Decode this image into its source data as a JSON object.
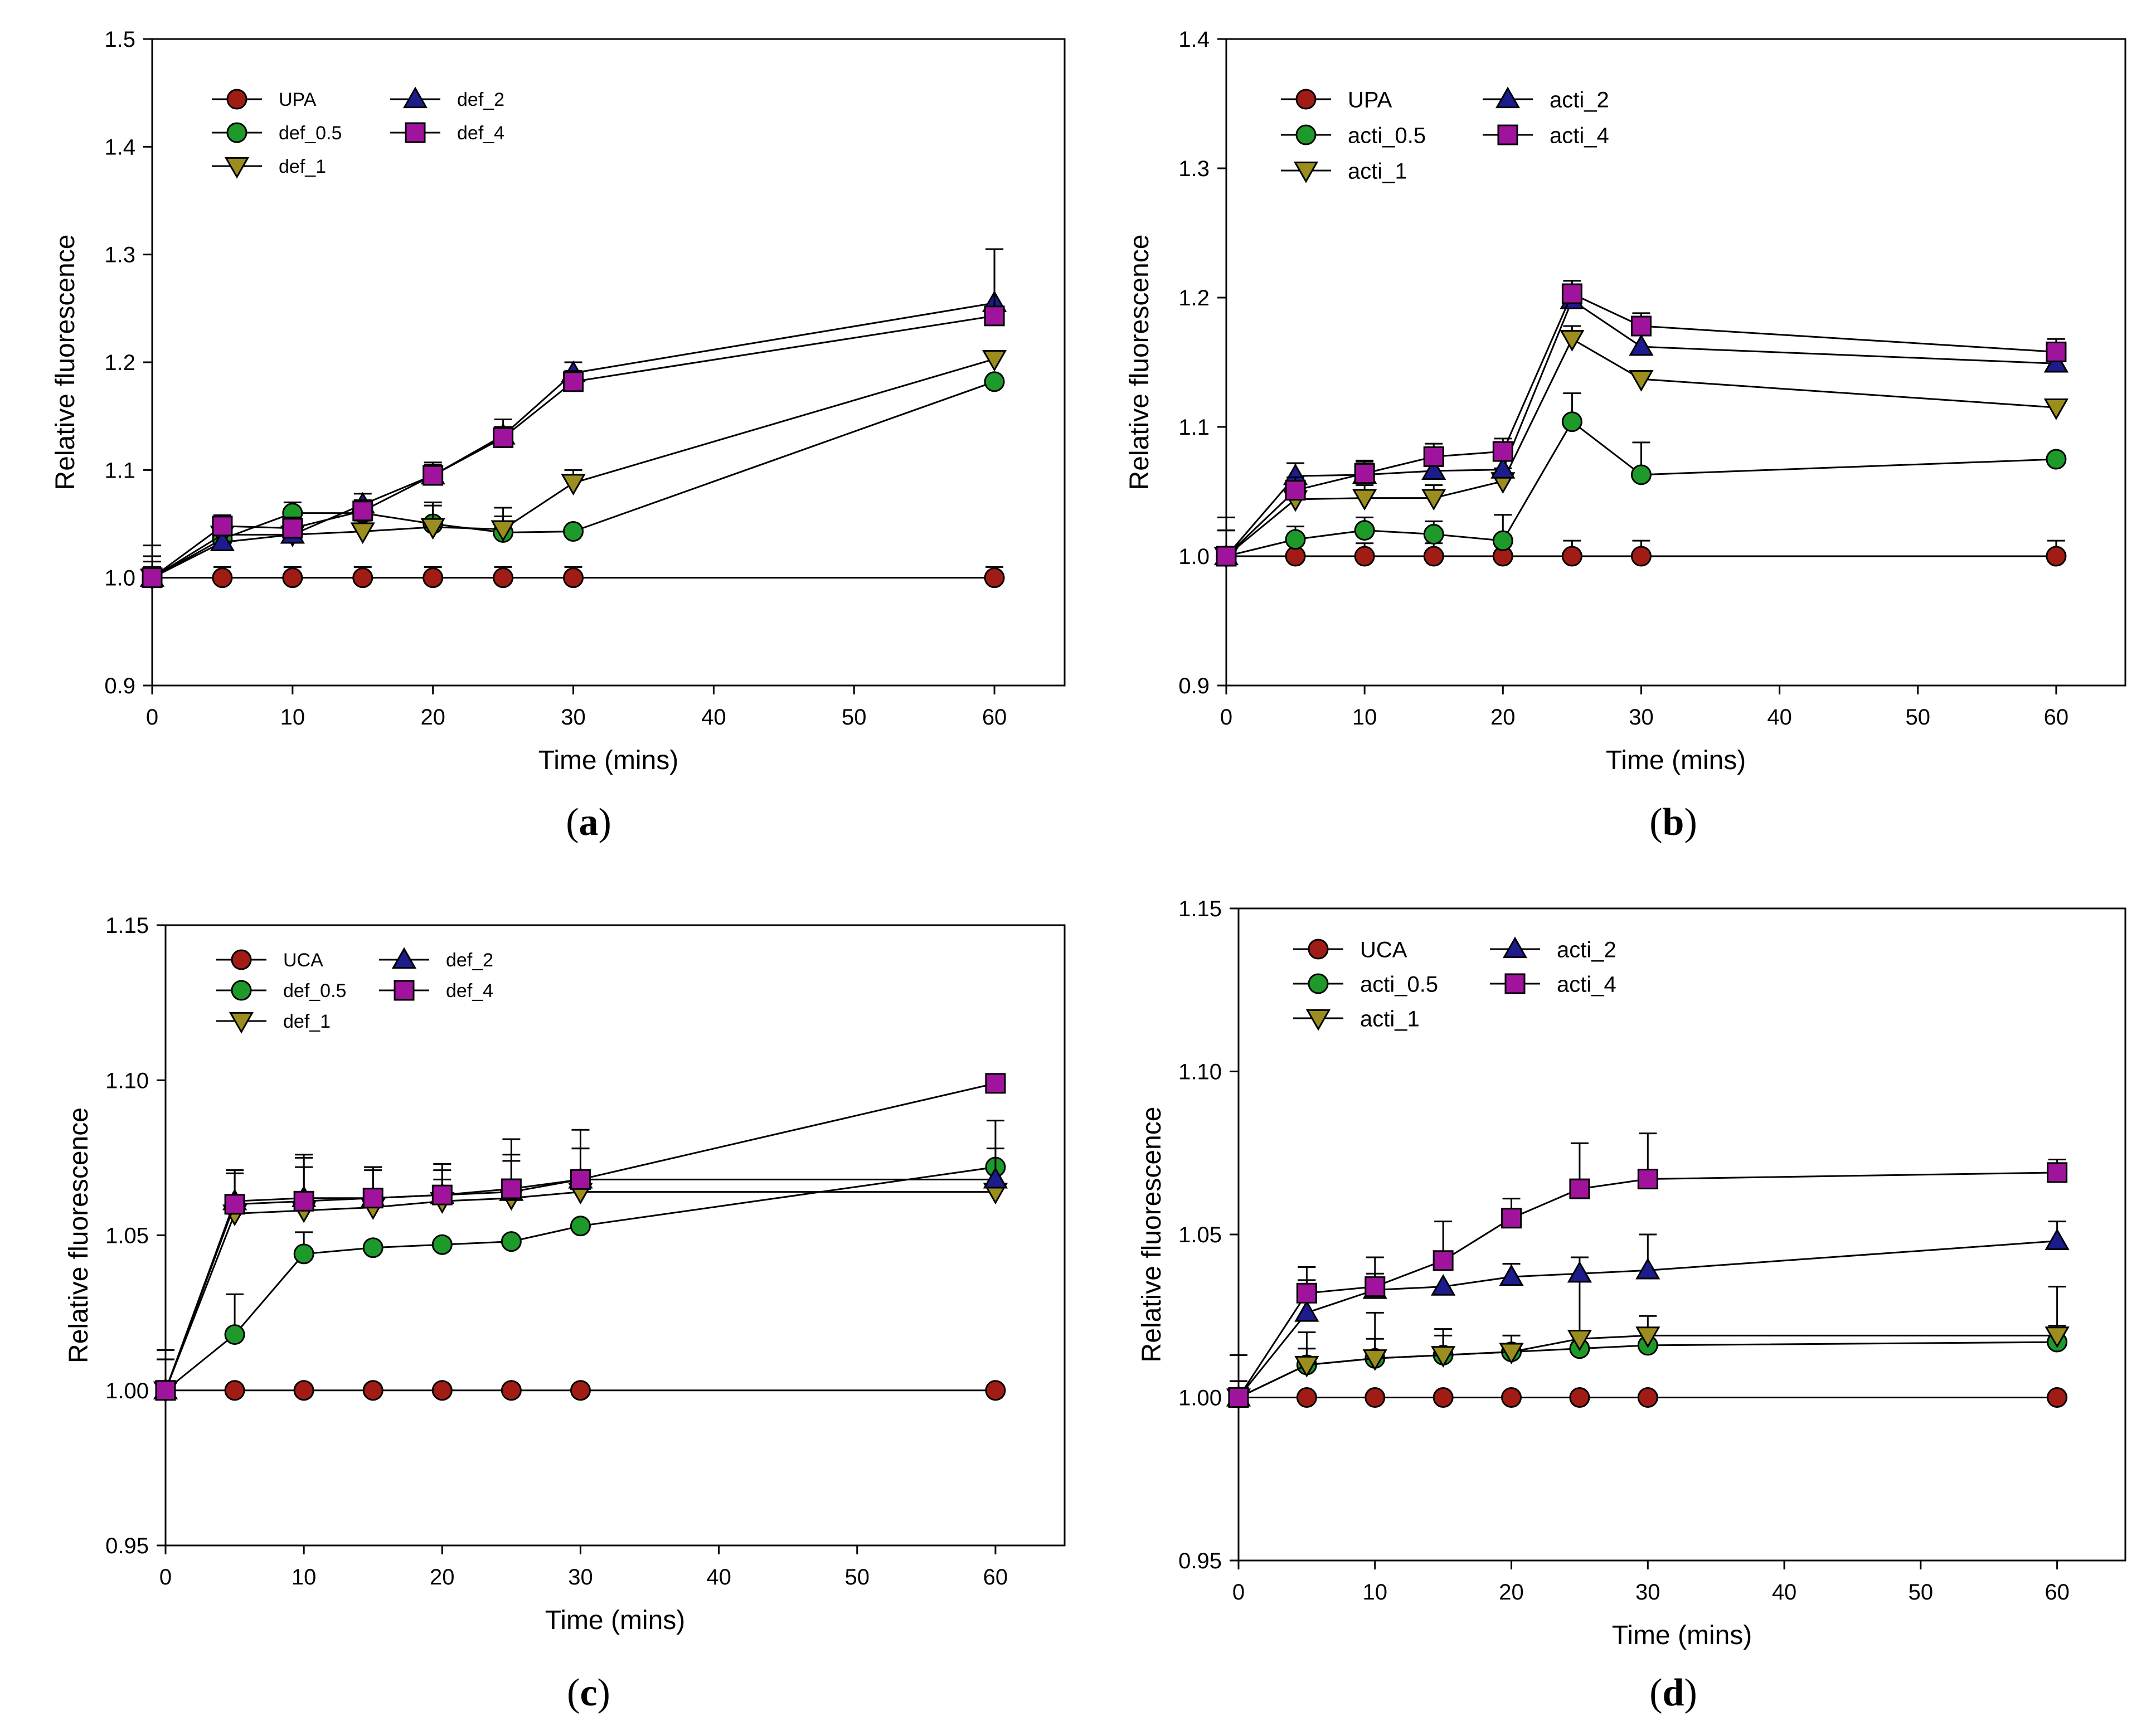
{
  "figure": {
    "colors": {
      "red": "#A01C14",
      "green": "#1E9A2B",
      "olive": "#9C8E1E",
      "blue": "#1C1C8C",
      "purple": "#A0139C",
      "line": "#000000"
    }
  },
  "chart_data": [
    {
      "panel": "a",
      "label_letter": "a",
      "type": "line",
      "xlabel": "Time (mins)",
      "ylabel": "Relative fluorescence",
      "xlim": [
        0,
        65
      ],
      "ylim": [
        0.9,
        1.5
      ],
      "xticks": [
        "0",
        "10",
        "20",
        "30",
        "40",
        "50",
        "60"
      ],
      "yticks": [
        "0.9",
        "1.0",
        "1.1",
        "1.2",
        "1.3",
        "1.4",
        "1.5"
      ],
      "legend_layout": "top-left",
      "x": [
        0,
        5,
        10,
        15,
        20,
        25,
        30,
        60
      ],
      "series": [
        {
          "name": "UPA",
          "marker": "circle",
          "color": "red",
          "values": [
            1.0,
            1.0,
            1.0,
            1.0,
            1.0,
            1.0,
            1.0,
            1.0
          ],
          "errors": [
            0.01,
            0.01,
            0.01,
            0.01,
            0.01,
            0.01,
            0.01,
            0.01
          ]
        },
        {
          "name": "def_0.5",
          "marker": "circle",
          "color": "green",
          "values": [
            1.0,
            1.036,
            1.06,
            1.06,
            1.05,
            1.042,
            1.043,
            1.182
          ],
          "errors": [
            0.02,
            0.01,
            0.01,
            0.01,
            0.02,
            0.015,
            0.0,
            0.0
          ]
        },
        {
          "name": "def_1",
          "marker": "triangle-down",
          "color": "olive",
          "values": [
            1.0,
            1.04,
            1.04,
            1.043,
            1.047,
            1.045,
            1.088,
            1.203
          ],
          "errors": [
            0.015,
            0.01,
            0.01,
            0.01,
            0.02,
            0.02,
            0.012,
            0.0
          ]
        },
        {
          "name": "def_2",
          "marker": "triangle-up",
          "color": "blue",
          "values": [
            1.0,
            1.033,
            1.04,
            1.068,
            1.095,
            1.132,
            1.19,
            1.255
          ],
          "errors": [
            0.03,
            0.01,
            0.01,
            0.01,
            0.012,
            0.015,
            0.01,
            0.05
          ]
        },
        {
          "name": "def_4",
          "marker": "square",
          "color": "purple",
          "values": [
            1.0,
            1.048,
            1.046,
            1.062,
            1.095,
            1.13,
            1.182,
            1.243
          ],
          "errors": [
            0.01,
            0.01,
            0.01,
            0.01,
            0.01,
            0.01,
            0.01,
            0.062
          ]
        }
      ]
    },
    {
      "panel": "b",
      "label_letter": "b",
      "type": "line",
      "xlabel": "Time (mins)",
      "ylabel": "Relative fluorescence",
      "xlim": [
        0,
        65
      ],
      "ylim": [
        0.9,
        1.4
      ],
      "xticks": [
        "0",
        "10",
        "20",
        "30",
        "40",
        "50",
        "60"
      ],
      "yticks": [
        "0.9",
        "1.0",
        "1.1",
        "1.2",
        "1.3",
        "1.4"
      ],
      "legend_layout": "top-left",
      "x": [
        0,
        5,
        10,
        15,
        20,
        25,
        30,
        60
      ],
      "series": [
        {
          "name": "UPA",
          "marker": "circle",
          "color": "red",
          "values": [
            1.0,
            1.0,
            1.0,
            1.0,
            1.0,
            1.0,
            1.0,
            1.0
          ],
          "errors": [
            0.03,
            0.01,
            0.01,
            0.01,
            0.01,
            0.012,
            0.012,
            0.012
          ]
        },
        {
          "name": "acti_0.5",
          "marker": "circle",
          "color": "green",
          "values": [
            1.0,
            1.013,
            1.02,
            1.017,
            1.012,
            1.104,
            1.063,
            1.075
          ],
          "errors": [
            0.02,
            0.01,
            0.01,
            0.01,
            0.02,
            0.022,
            0.025,
            0.0
          ]
        },
        {
          "name": "acti_1",
          "marker": "triangle-down",
          "color": "olive",
          "values": [
            1.0,
            1.044,
            1.045,
            1.045,
            1.058,
            1.168,
            1.137,
            1.115
          ],
          "errors": [
            0.02,
            0.01,
            0.01,
            0.01,
            0.01,
            0.01,
            0.0,
            0.0
          ]
        },
        {
          "name": "acti_2",
          "marker": "triangle-up",
          "color": "blue",
          "values": [
            1.0,
            1.062,
            1.063,
            1.066,
            1.067,
            1.198,
            1.162,
            1.149
          ],
          "errors": [
            0.02,
            0.01,
            0.01,
            0.01,
            0.01,
            0.01,
            0.01,
            0.01
          ]
        },
        {
          "name": "acti_4",
          "marker": "square",
          "color": "purple",
          "values": [
            1.0,
            1.051,
            1.064,
            1.077,
            1.081,
            1.203,
            1.178,
            1.158
          ],
          "errors": [
            0.02,
            0.01,
            0.01,
            0.01,
            0.01,
            0.01,
            0.01,
            0.01
          ]
        }
      ]
    },
    {
      "panel": "c",
      "label_letter": "c",
      "type": "line",
      "xlabel": "Time (mins)",
      "ylabel": "Relative fluorescence",
      "xlim": [
        0,
        65
      ],
      "ylim": [
        0.95,
        1.15
      ],
      "xticks": [
        "0",
        "10",
        "20",
        "30",
        "40",
        "50",
        "60"
      ],
      "yticks": [
        "0.95",
        "1.00",
        "1.05",
        "1.10",
        "1.15"
      ],
      "legend_layout": "top-left",
      "x": [
        0,
        5,
        10,
        15,
        20,
        25,
        30,
        60
      ],
      "series": [
        {
          "name": "UCA",
          "marker": "circle",
          "color": "red",
          "values": [
            1.0,
            1.0,
            1.0,
            1.0,
            1.0,
            1.0,
            1.0,
            1.0
          ],
          "errors": [
            0.013,
            0.0,
            0.0,
            0.0,
            0.0,
            0.0,
            0.0,
            0.0
          ]
        },
        {
          "name": "def_0.5",
          "marker": "circle",
          "color": "green",
          "values": [
            1.0,
            1.018,
            1.044,
            1.046,
            1.047,
            1.048,
            1.053,
            1.072
          ],
          "errors": [
            0.01,
            0.013,
            0.007,
            0.0,
            0.0,
            0.0,
            0.0,
            0.015
          ]
        },
        {
          "name": "def_1",
          "marker": "triangle-down",
          "color": "olive",
          "values": [
            1.0,
            1.057,
            1.058,
            1.059,
            1.061,
            1.062,
            1.064,
            1.064
          ],
          "errors": [
            0.01,
            0.014,
            0.017,
            0.012,
            0.007,
            0.014,
            0.014,
            0.0
          ]
        },
        {
          "name": "def_2",
          "marker": "triangle-up",
          "color": "blue",
          "values": [
            1.0,
            1.061,
            1.062,
            1.062,
            1.063,
            1.064,
            1.068,
            1.068
          ],
          "errors": [
            0.01,
            0.01,
            0.01,
            0.01,
            0.01,
            0.01,
            0.01,
            0.01
          ]
        },
        {
          "name": "def_4",
          "marker": "square",
          "color": "purple",
          "values": [
            1.0,
            1.06,
            1.061,
            1.062,
            1.063,
            1.065,
            1.068,
            1.099
          ],
          "errors": [
            0.01,
            0.01,
            0.015,
            0.01,
            0.008,
            0.016,
            0.016,
            0.003
          ]
        }
      ]
    },
    {
      "panel": "d",
      "label_letter": "d",
      "type": "line",
      "xlabel": "Time (mins)",
      "ylabel": "Relative fluorescence",
      "xlim": [
        0,
        65
      ],
      "ylim": [
        0.95,
        1.15
      ],
      "xticks": [
        "0",
        "10",
        "20",
        "30",
        "40",
        "50",
        "60"
      ],
      "yticks": [
        "0.95",
        "1.00",
        "1.05",
        "1.10",
        "1.15"
      ],
      "legend_layout": "top-left",
      "x": [
        0,
        5,
        10,
        15,
        20,
        25,
        30,
        60
      ],
      "series": [
        {
          "name": "UCA",
          "marker": "circle",
          "color": "red",
          "values": [
            1.0,
            1.0,
            1.0,
            1.0,
            1.0,
            1.0,
            1.0,
            1.0
          ],
          "errors": [
            0.013,
            0.0,
            0.0,
            0.0,
            0.0,
            0.0,
            0.0,
            0.0
          ]
        },
        {
          "name": "acti_0.5",
          "marker": "circle",
          "color": "green",
          "values": [
            1.0,
            1.01,
            1.012,
            1.013,
            1.014,
            1.015,
            1.016,
            1.017
          ],
          "errors": [
            0.005,
            0.005,
            0.006,
            0.006,
            0.005,
            0.005,
            0.005,
            0.005
          ]
        },
        {
          "name": "acti_1",
          "marker": "triangle-down",
          "color": "olive",
          "values": [
            1.0,
            1.01,
            1.012,
            1.013,
            1.014,
            1.018,
            1.019,
            1.019
          ],
          "errors": [
            0.005,
            0.01,
            0.014,
            0.008,
            0.005,
            0.018,
            0.006,
            0.015
          ]
        },
        {
          "name": "acti_2",
          "marker": "triangle-up",
          "color": "blue",
          "values": [
            1.0,
            1.026,
            1.033,
            1.034,
            1.037,
            1.038,
            1.039,
            1.048
          ],
          "errors": [
            0.005,
            0.01,
            0.005,
            0.0,
            0.004,
            0.005,
            0.011,
            0.006
          ]
        },
        {
          "name": "acti_4",
          "marker": "square",
          "color": "purple",
          "values": [
            1.0,
            1.032,
            1.034,
            1.042,
            1.055,
            1.064,
            1.067,
            1.069
          ],
          "errors": [
            0.005,
            0.008,
            0.009,
            0.012,
            0.006,
            0.014,
            0.014,
            0.004
          ]
        }
      ]
    }
  ]
}
